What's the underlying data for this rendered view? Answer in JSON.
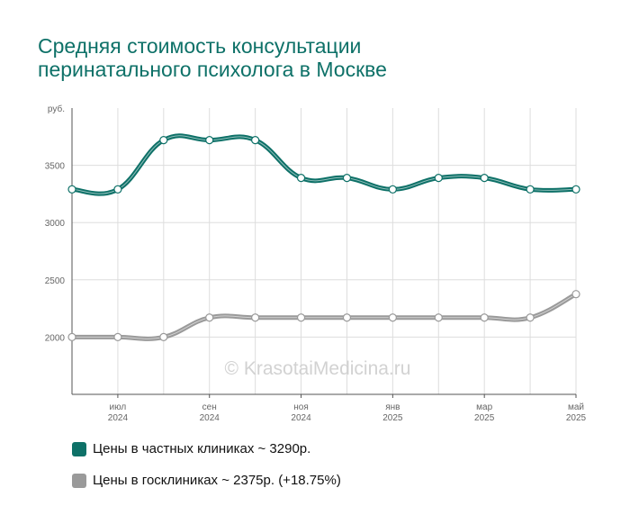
{
  "title_line1": "Средняя стоимость консультации",
  "title_line2": "перинатального психолога в Москве",
  "watermark": "© KrasotaiMedicina.ru",
  "colors": {
    "private": "#0e7168",
    "public": "#9a9a9a",
    "grid": "#dddddd",
    "axis": "#555555"
  },
  "chart_data": {
    "type": "line",
    "ylabel": "руб.",
    "ylim": [
      1500,
      4000
    ],
    "yticks": [
      "2000",
      "2500",
      "3000",
      "3500"
    ],
    "x": [
      "2024-06",
      "2024-07",
      "2024-08",
      "2024-09",
      "2024-10",
      "2024-11",
      "2024-12",
      "2025-01",
      "2025-02",
      "2025-03",
      "2025-04",
      "2025-05"
    ],
    "xtick_labels": [
      {
        "month": "июл",
        "year": "2024"
      },
      {
        "month": "сен",
        "year": "2024"
      },
      {
        "month": "ноя",
        "year": "2024"
      },
      {
        "month": "янв",
        "year": "2025"
      },
      {
        "month": "мар",
        "year": "2025"
      },
      {
        "month": "май",
        "year": "2025"
      }
    ],
    "series": [
      {
        "name": "Цены в частных клиниках",
        "color": "#0e7168",
        "values": [
          3290,
          3290,
          3720,
          3720,
          3720,
          3390,
          3390,
          3290,
          3390,
          3390,
          3290,
          3290
        ]
      },
      {
        "name": "Цены в госклиниках",
        "color": "#9a9a9a",
        "values": [
          2000,
          2000,
          2000,
          2170,
          2170,
          2170,
          2170,
          2170,
          2170,
          2170,
          2170,
          2375
        ]
      }
    ],
    "grid": true,
    "legend": "bottom"
  },
  "legend": {
    "item1": "Цены в частных клиниках ~ 3290р.",
    "item2": "Цены в госклиниках ~ 2375р. (+18.75%)"
  }
}
